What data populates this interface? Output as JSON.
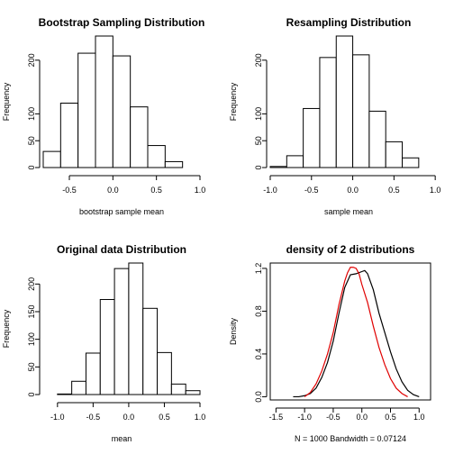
{
  "chart_data": [
    {
      "type": "bar",
      "title": "Bootstrap Sampling Distribution",
      "xlabel": "bootstrap sample mean",
      "ylabel": "Frequency",
      "bins": [
        [
          -0.8,
          -0.6
        ],
        [
          -0.6,
          -0.4
        ],
        [
          -0.4,
          -0.2
        ],
        [
          -0.2,
          0.0
        ],
        [
          0.0,
          0.2
        ],
        [
          0.2,
          0.4
        ],
        [
          0.4,
          0.6
        ],
        [
          0.6,
          0.8
        ]
      ],
      "values": [
        30,
        120,
        213,
        245,
        208,
        113,
        41,
        11
      ],
      "xlim": [
        -0.8,
        1.0
      ],
      "ylim": [
        0,
        245
      ],
      "xticks": [
        -0.5,
        0.0,
        0.5,
        1.0
      ],
      "xtick_labels": [
        "-0.5",
        "0.0",
        "0.5",
        "1.0"
      ],
      "yticks": [
        0,
        50,
        100,
        200
      ],
      "ytick_labels": [
        "0",
        "50",
        "100",
        "200"
      ]
    },
    {
      "type": "bar",
      "title": "Resampling Distribution",
      "xlabel": "sample mean",
      "ylabel": "Frequency",
      "bins": [
        [
          -1.0,
          -0.8
        ],
        [
          -0.8,
          -0.6
        ],
        [
          -0.6,
          -0.4
        ],
        [
          -0.4,
          -0.2
        ],
        [
          -0.2,
          0.0
        ],
        [
          0.0,
          0.2
        ],
        [
          0.2,
          0.4
        ],
        [
          0.4,
          0.6
        ],
        [
          0.6,
          0.8
        ]
      ],
      "values": [
        2,
        22,
        110,
        205,
        245,
        210,
        105,
        48,
        18
      ],
      "xlim": [
        -1.0,
        0.9
      ],
      "ylim": [
        0,
        245
      ],
      "xticks": [
        -1.0,
        -0.5,
        0.0,
        0.5,
        1.0
      ],
      "xtick_labels": [
        "-1.0",
        "-0.5",
        "0.0",
        "0.5",
        "1.0"
      ],
      "yticks": [
        0,
        50,
        100,
        200
      ],
      "ytick_labels": [
        "0",
        "50",
        "100",
        "200"
      ]
    },
    {
      "type": "bar",
      "title": "Original data Distribution",
      "xlabel": "mean",
      "ylabel": "Frequency",
      "bins": [
        [
          -1.0,
          -0.8
        ],
        [
          -0.8,
          -0.6
        ],
        [
          -0.6,
          -0.4
        ],
        [
          -0.4,
          -0.2
        ],
        [
          -0.2,
          0.0
        ],
        [
          0.0,
          0.2
        ],
        [
          0.2,
          0.4
        ],
        [
          0.4,
          0.6
        ],
        [
          0.6,
          0.8
        ],
        [
          0.8,
          1.0
        ]
      ],
      "values": [
        1,
        24,
        75,
        172,
        228,
        238,
        156,
        76,
        19,
        7
      ],
      "xlim": [
        -1.2,
        1.0
      ],
      "ylim": [
        0,
        238
      ],
      "xticks": [
        -1.0,
        -0.5,
        0.0,
        0.5,
        1.0
      ],
      "xtick_labels": [
        "-1.0",
        "-0.5",
        "0.0",
        "0.5",
        "1.0"
      ],
      "yticks": [
        0,
        50,
        100,
        150,
        200
      ],
      "ytick_labels": [
        "0",
        "50",
        "100",
        "150",
        "200"
      ]
    },
    {
      "type": "line",
      "title": "density of 2 distributions",
      "xlabel": "N = 1000   Bandwidth = 0.07124",
      "ylabel": "Density",
      "xlim": [
        -1.6,
        1.2
      ],
      "ylim": [
        -0.03,
        1.25
      ],
      "xticks": [
        -1.5,
        -1.0,
        -0.5,
        0.0,
        0.5,
        1.0
      ],
      "xtick_labels": [
        "-1.5",
        "-1.0",
        "-0.5",
        "0.0",
        "0.5",
        "1.0"
      ],
      "yticks": [
        0.0,
        0.4,
        0.8,
        1.2
      ],
      "ytick_labels": [
        "0.0",
        "0.4",
        "0.8",
        "1.2"
      ],
      "series": [
        {
          "color": "#000000",
          "x": [
            -1.2,
            -1.1,
            -1.0,
            -0.9,
            -0.8,
            -0.7,
            -0.6,
            -0.5,
            -0.4,
            -0.3,
            -0.2,
            -0.1,
            -0.05,
            0.0,
            0.05,
            0.1,
            0.2,
            0.3,
            0.4,
            0.5,
            0.6,
            0.7,
            0.8,
            0.9,
            1.0
          ],
          "y": [
            0.0,
            0.0,
            0.01,
            0.03,
            0.08,
            0.18,
            0.32,
            0.52,
            0.78,
            1.02,
            1.14,
            1.15,
            1.16,
            1.17,
            1.18,
            1.15,
            1.0,
            0.78,
            0.6,
            0.42,
            0.26,
            0.14,
            0.06,
            0.02,
            0.0
          ]
        },
        {
          "color": "#e00000",
          "x": [
            -1.0,
            -0.9,
            -0.8,
            -0.7,
            -0.6,
            -0.5,
            -0.4,
            -0.3,
            -0.25,
            -0.2,
            -0.15,
            -0.1,
            -0.05,
            0.0,
            0.1,
            0.2,
            0.3,
            0.4,
            0.5,
            0.6,
            0.7,
            0.8
          ],
          "y": [
            0.0,
            0.04,
            0.12,
            0.24,
            0.4,
            0.6,
            0.86,
            1.08,
            1.16,
            1.21,
            1.21,
            1.2,
            1.15,
            1.05,
            0.88,
            0.66,
            0.46,
            0.3,
            0.17,
            0.08,
            0.03,
            0.0
          ]
        }
      ]
    }
  ]
}
